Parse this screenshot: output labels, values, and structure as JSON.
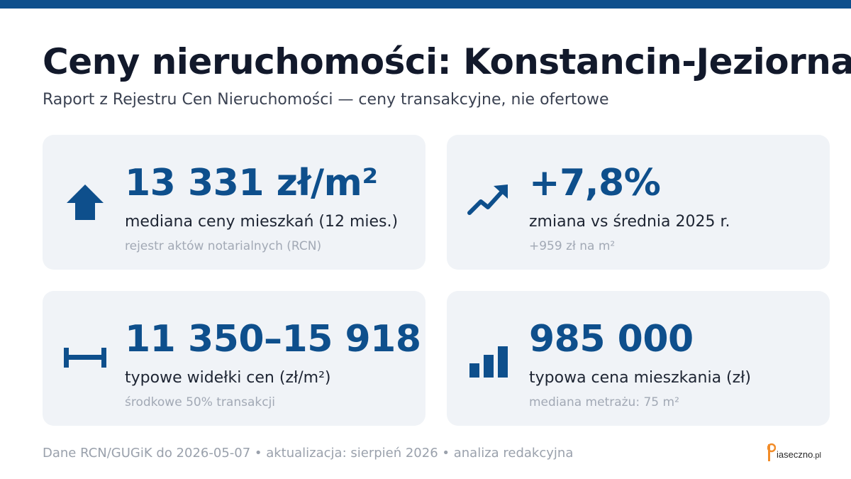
{
  "title": "Ceny nieruchomości: Konstancin-Jeziorna",
  "subtitle": "Raport z Rejestru Cen Nieruchomości — ceny transakcyjne, nie ofertowe",
  "cards": [
    {
      "icon": "house-arrow-icon",
      "value": "13 331 zł/m²",
      "label": "mediana ceny mieszkań (12 mies.)",
      "note": "rejestr aktów notarialnych (RCN)"
    },
    {
      "icon": "trend-up-icon",
      "value": "+7,8%",
      "label": "zmiana vs średnia 2025 r.",
      "note": "+959 zł na m²"
    },
    {
      "icon": "range-icon",
      "value": "11 350–15 918",
      "label": "typowe widełki cen (zł/m²)",
      "note": "środkowe 50% transakcji"
    },
    {
      "icon": "bar-chart-icon",
      "value": "985 000",
      "label": "typowa cena mieszkania (zł)",
      "note": "mediana metrażu: 75 m²"
    }
  ],
  "footer": "Dane RCN/GUGiK do 2026-05-07 • aktualizacja: sierpień 2026 • analiza redakcyjna",
  "logo": {
    "name": "iaseczno",
    "tld": ".pl"
  },
  "colors": {
    "accent": "#0e4f8c",
    "card_bg": "#f0f3f7",
    "logo_orange": "#f28c28"
  }
}
